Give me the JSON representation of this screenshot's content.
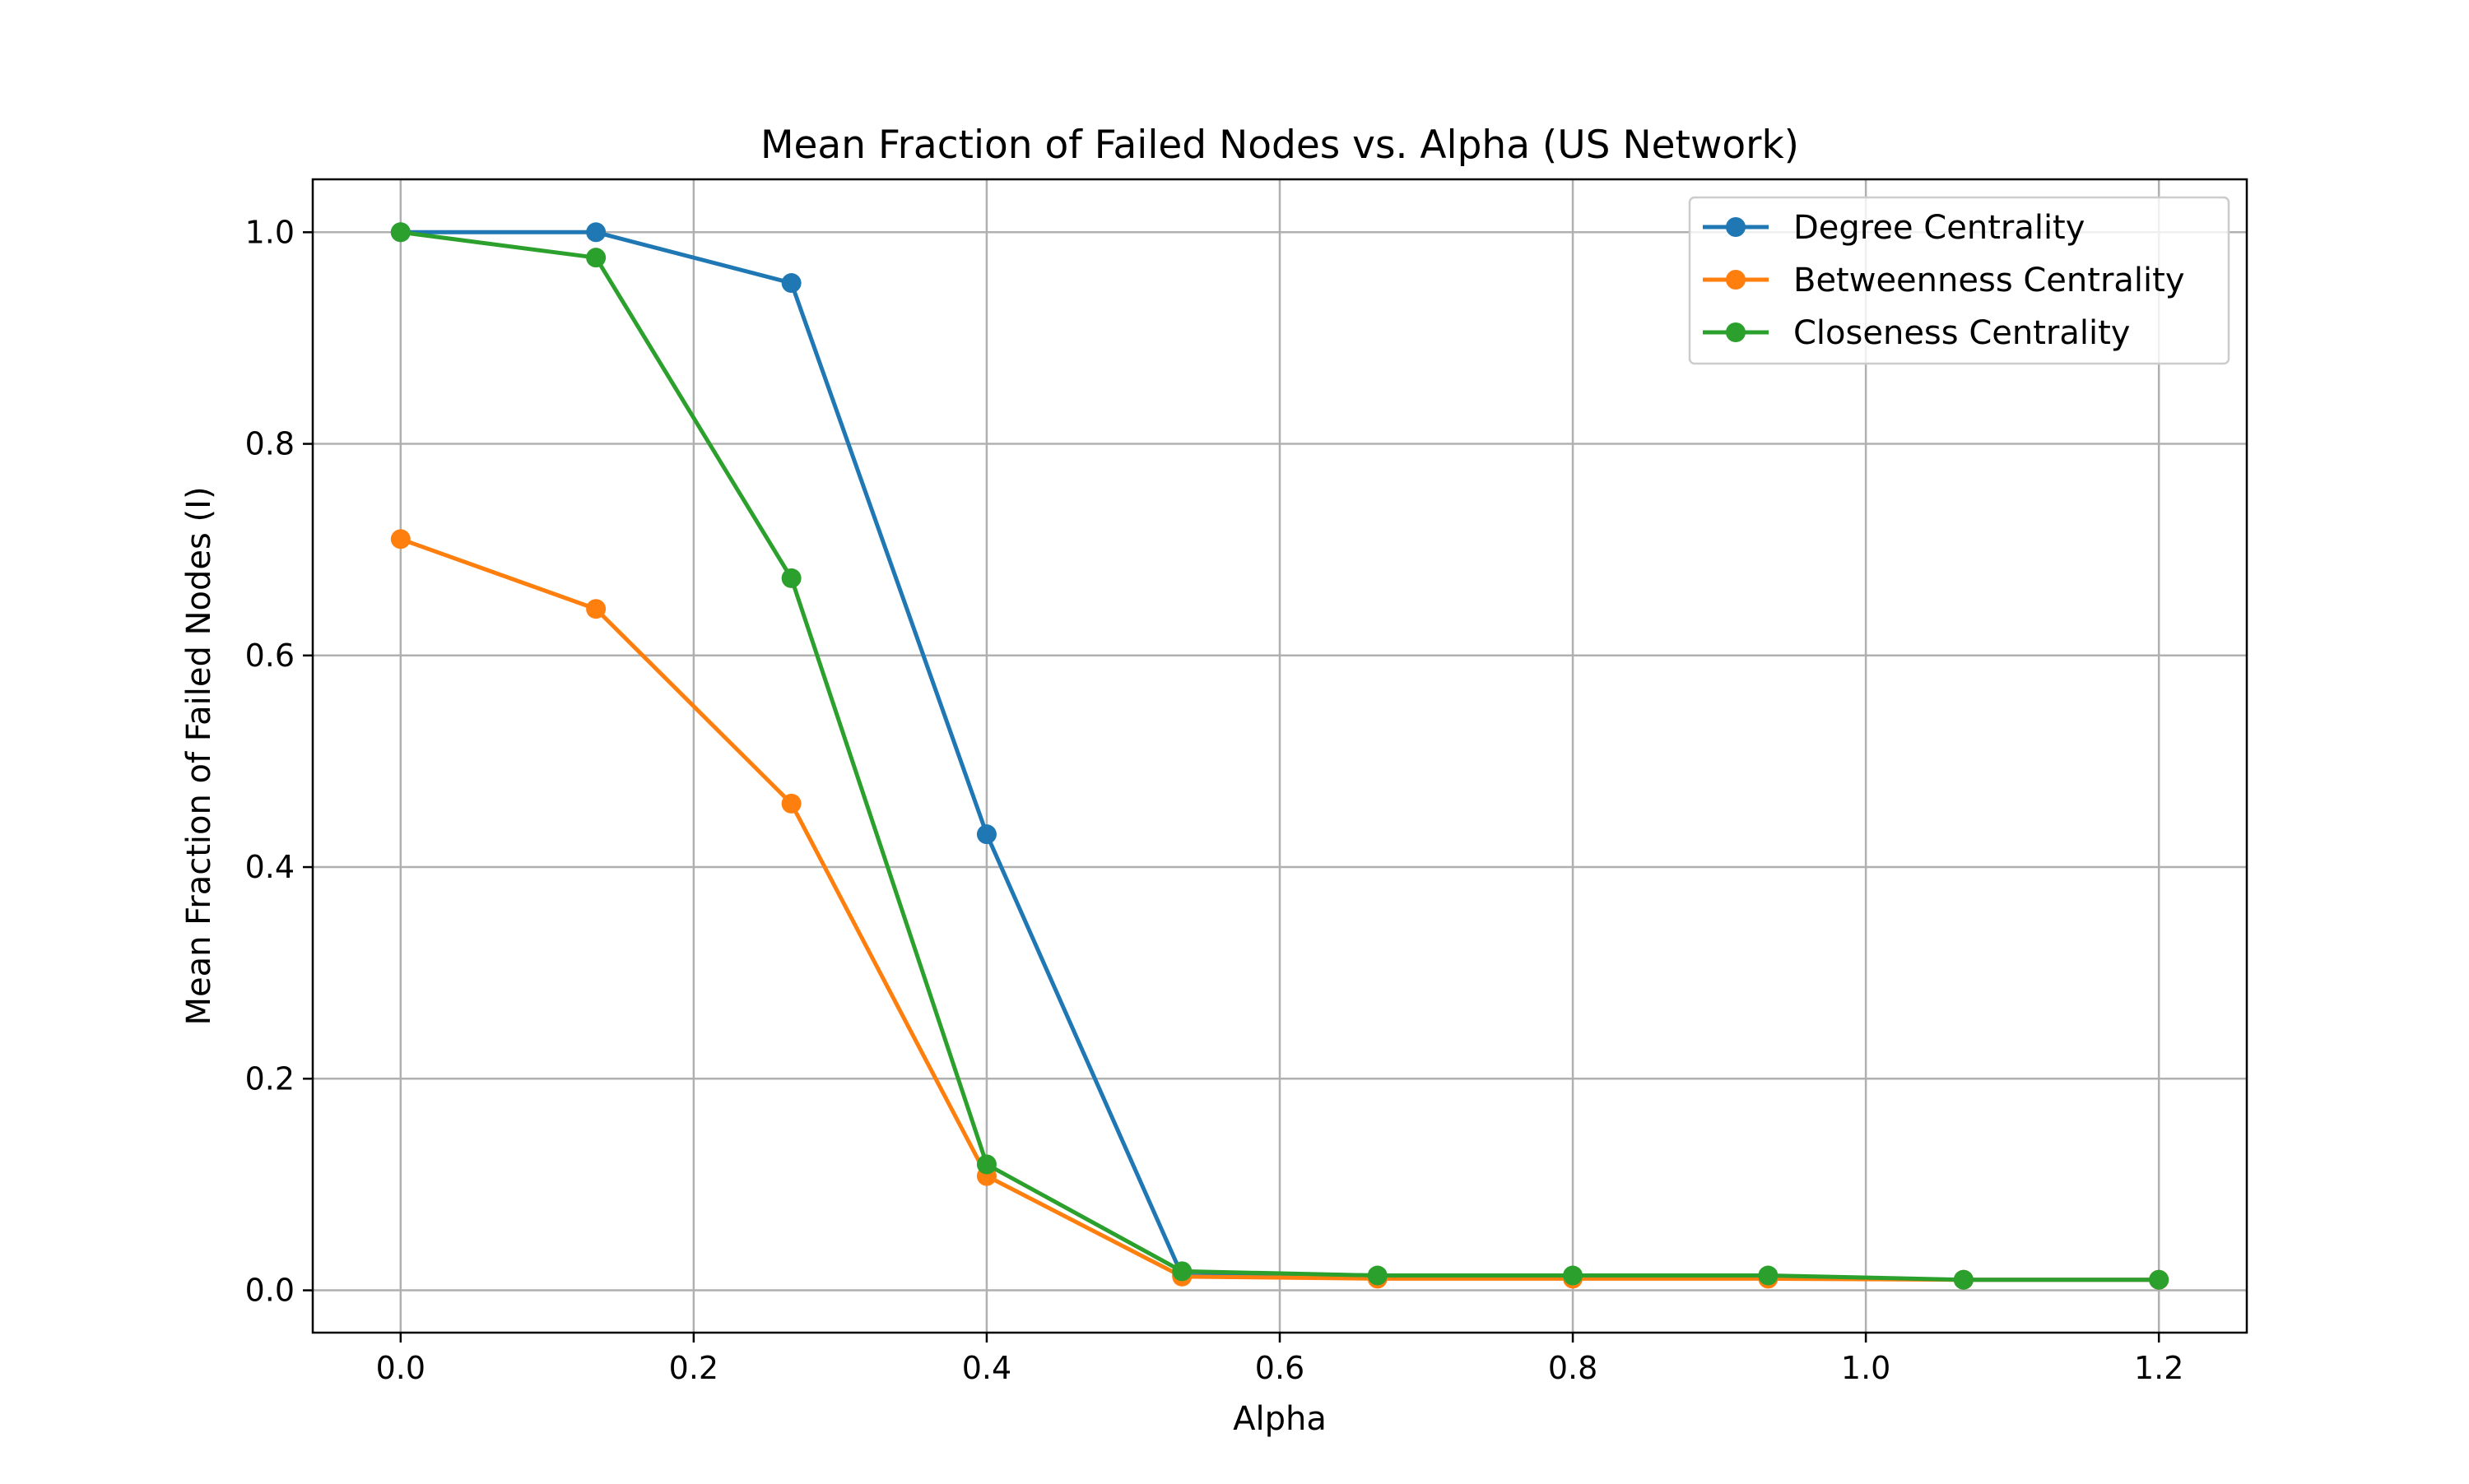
{
  "chart_data": {
    "type": "line",
    "title": "Mean Fraction of Failed Nodes vs. Alpha (US Network)",
    "xlabel": "Alpha",
    "ylabel": "Mean Fraction of Failed Nodes (I)",
    "xlim": [
      -0.06,
      1.26
    ],
    "ylim": [
      -0.04,
      1.05
    ],
    "xticks": [
      0.0,
      0.2,
      0.4,
      0.6,
      0.8,
      1.0,
      1.2
    ],
    "xtick_labels": [
      "0.0",
      "0.2",
      "0.4",
      "0.6",
      "0.8",
      "1.0",
      "1.2"
    ],
    "yticks": [
      0.0,
      0.2,
      0.4,
      0.6,
      0.8,
      1.0
    ],
    "ytick_labels": [
      "0.0",
      "0.2",
      "0.4",
      "0.6",
      "0.8",
      "1.0"
    ],
    "grid": true,
    "legend_position": "top-right",
    "x": [
      0.0,
      0.1333,
      0.2667,
      0.4,
      0.5333,
      0.6667,
      0.8,
      0.9333,
      1.0667,
      1.2
    ],
    "series": [
      {
        "name": "Degree Centrality",
        "color": "#1f77b4",
        "values": [
          1.0,
          1.0,
          0.952,
          0.431,
          0.014,
          0.012,
          0.012,
          0.012,
          0.01,
          0.01
        ]
      },
      {
        "name": "Betweenness Centrality",
        "color": "#ff7f0e",
        "values": [
          0.71,
          0.644,
          0.46,
          0.108,
          0.013,
          0.011,
          0.011,
          0.011,
          0.01,
          0.01
        ]
      },
      {
        "name": "Closeness Centrality",
        "color": "#2ca02c",
        "values": [
          1.0,
          0.976,
          0.673,
          0.119,
          0.018,
          0.014,
          0.014,
          0.014,
          0.01,
          0.01
        ]
      }
    ]
  }
}
